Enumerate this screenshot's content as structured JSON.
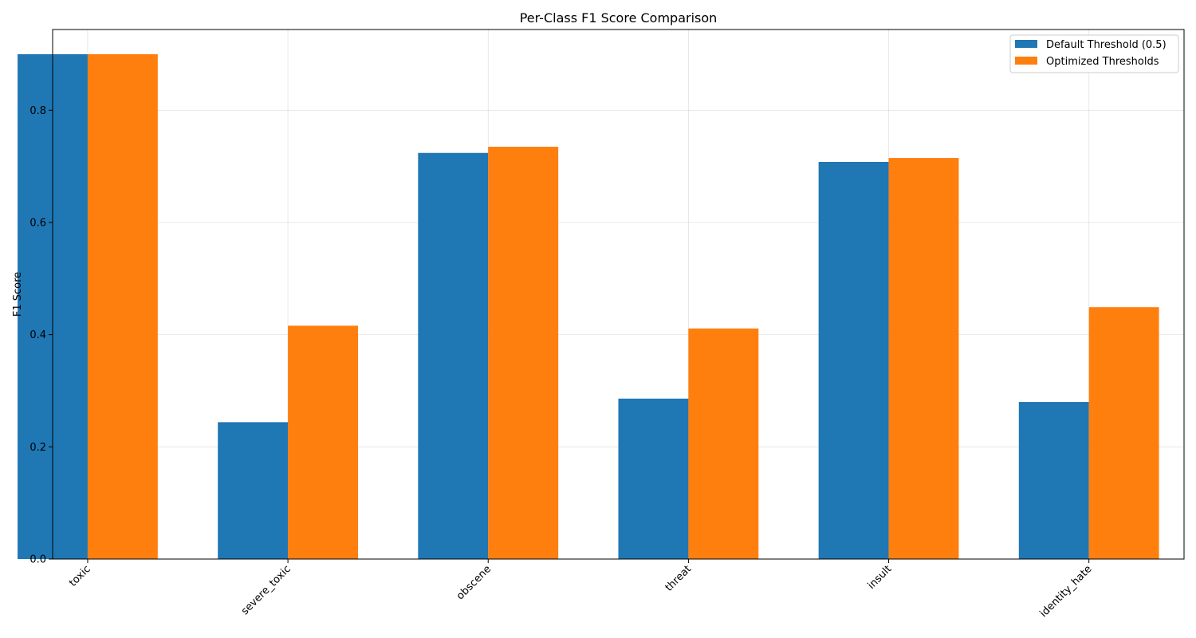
{
  "chart_data": {
    "type": "bar",
    "title": "Per-Class F1 Score Comparison",
    "xlabel": "",
    "ylabel": "F1 Score",
    "categories": [
      "toxic",
      "severe_toxic",
      "obscene",
      "threat",
      "insult",
      "identity_hate"
    ],
    "series": [
      {
        "name": "Default Threshold (0.5)",
        "color": "#1f77b4",
        "values": [
          0.9,
          0.244,
          0.724,
          0.286,
          0.708,
          0.28
        ]
      },
      {
        "name": "Optimized Thresholds",
        "color": "#ff7f0e",
        "values": [
          0.9,
          0.416,
          0.735,
          0.411,
          0.715,
          0.449
        ]
      }
    ],
    "ylim": [
      0,
      0.944
    ],
    "yticks": [
      0.0,
      0.2,
      0.4,
      0.6,
      0.8
    ],
    "ytick_labels": [
      "0.0",
      "0.2",
      "0.4",
      "0.6",
      "0.8"
    ],
    "grid": true,
    "legend_position": "top-right",
    "xtick_rotation_deg": 45
  }
}
